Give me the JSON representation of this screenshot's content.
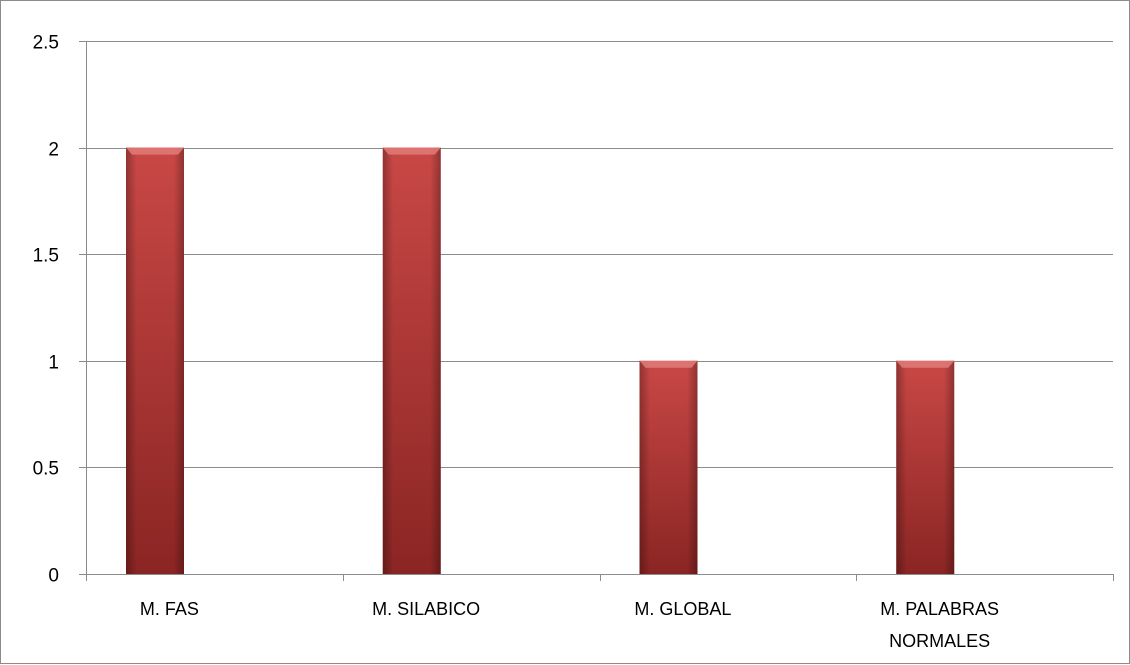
{
  "chart_data": {
    "type": "bar",
    "categories": [
      "M. FAS",
      "M. SILABICO",
      "M. GLOBAL",
      "M. PALABRAS NORMALES"
    ],
    "category_lines": [
      [
        "M. FAS"
      ],
      [
        "M. SILABICO"
      ],
      [
        "M. GLOBAL"
      ],
      [
        "M. PALABRAS",
        "NORMALES"
      ]
    ],
    "values": [
      2,
      2,
      1,
      1
    ],
    "title": "",
    "xlabel": "",
    "ylabel": "",
    "ylim": [
      0,
      2.5
    ],
    "yticks": [
      0,
      0.5,
      1,
      1.5,
      2,
      2.5
    ],
    "ytick_labels": [
      "0",
      "0.5",
      "1",
      "1.5",
      "2",
      "2.5"
    ],
    "grid": true,
    "legend": "none",
    "colors": {
      "bar_light": "#c94846",
      "bar_mid": "#b53a38",
      "bar_dark": "#8a2523",
      "bar_cap": "#e07c79",
      "grid": "#8c8c8c",
      "axis": "#8c8c8c"
    }
  }
}
